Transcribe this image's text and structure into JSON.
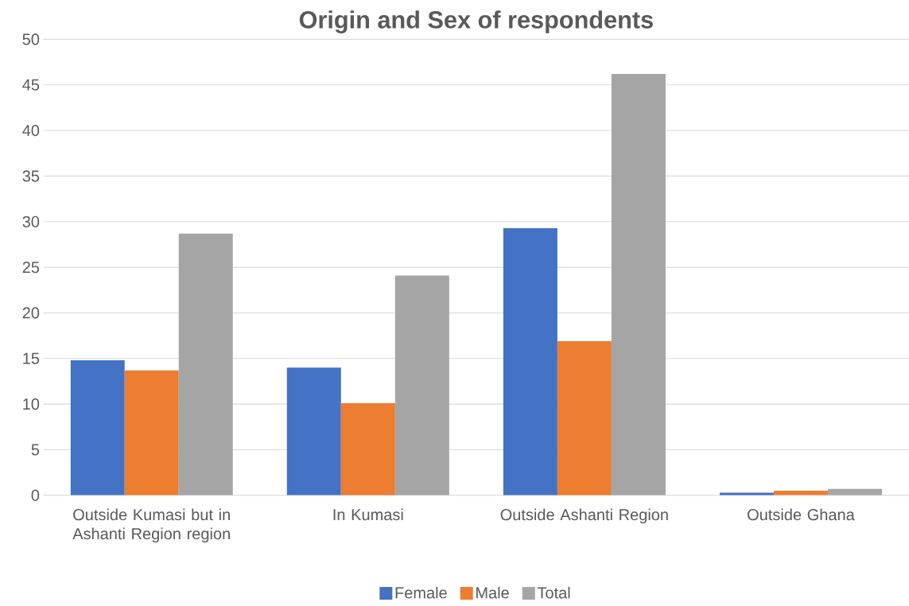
{
  "chart_data": {
    "type": "bar",
    "title": "Origin and Sex of respondents",
    "categories": [
      "Outside Kumasi but in Ashanti Region region",
      "In Kumasi",
      "Outside Ashanti Region",
      "Outside Ghana"
    ],
    "series": [
      {
        "name": "Female",
        "color": "#4472c4",
        "values": [
          14.8,
          14.0,
          29.3,
          0.3
        ]
      },
      {
        "name": "Male",
        "color": "#ed7d31",
        "values": [
          13.7,
          10.1,
          16.9,
          0.5
        ]
      },
      {
        "name": "Total",
        "color": "#a5a5a5",
        "values": [
          28.7,
          24.1,
          46.2,
          0.7
        ]
      }
    ],
    "ylim": [
      0,
      50
    ],
    "yticks": [
      0,
      5,
      10,
      15,
      20,
      25,
      30,
      35,
      40,
      45,
      50
    ],
    "grid": "y",
    "legend": "bottom"
  }
}
